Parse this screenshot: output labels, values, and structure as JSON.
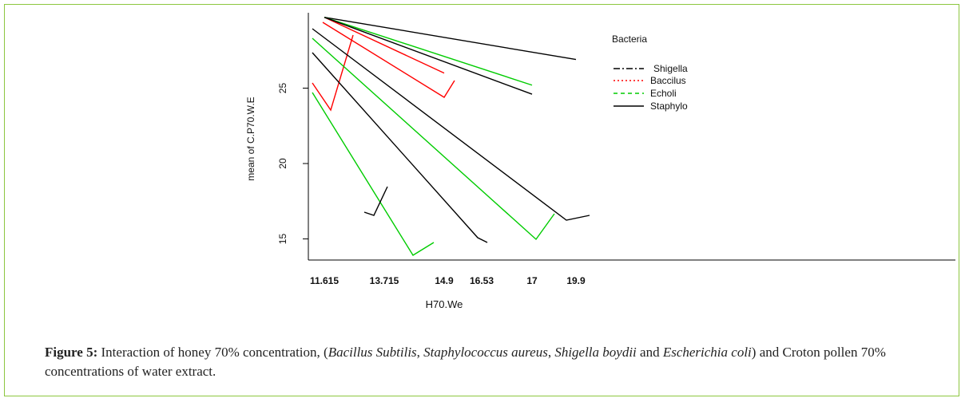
{
  "chart_data": {
    "type": "line",
    "xlabel": "H70.We",
    "ylabel": "mean of C.P70.W.E",
    "categories": [
      "11.615",
      "13.715",
      "14.9",
      "16.53",
      "17",
      "19.9"
    ],
    "yticks": [
      15,
      20,
      25
    ],
    "ylim": [
      13.6,
      30
    ],
    "legend": {
      "title": "Bacteria",
      "placement": "top-right"
    },
    "series": [
      {
        "name": "Shigella",
        "color": "#000000",
        "dash": "8,3,2,3",
        "x": [
          11.615,
          19.9
        ],
        "values": [
          29.7,
          26.9
        ]
      },
      {
        "name": "Baccilus",
        "color": "#ff0000",
        "dash": "2,3",
        "x": [
          11.615,
          14.9
        ],
        "values": [
          29.7,
          26.0
        ]
      },
      {
        "name": "Echoli",
        "color": "#00cc00",
        "dash": "5,4",
        "x": [
          11.615,
          17
        ],
        "values": [
          29.7,
          25.2
        ]
      },
      {
        "name": "Staphylo",
        "color": "#000000",
        "dash": "",
        "x": [
          11.615,
          17
        ],
        "values": [
          29.7,
          24.6
        ]
      }
    ],
    "segments": [
      {
        "color": "#ff0000",
        "points": [
          [
            11.615,
            25.9
          ],
          [
            11.615,
            24.0
          ],
          [
            14.9,
            29.0
          ]
        ]
      },
      {
        "color": "#ff0000",
        "points": [
          [
            11.615,
            29.7
          ],
          [
            14.9,
            24.9
          ],
          [
            14.9,
            26.1
          ]
        ]
      },
      {
        "color": "#00cc00",
        "points": [
          [
            11.615,
            25.2
          ],
          [
            13.715,
            14.3
          ],
          [
            14.9,
            15.2
          ]
        ]
      },
      {
        "color": "#00cc00",
        "points": [
          [
            11.615,
            28.7
          ],
          [
            17,
            15.4
          ],
          [
            17,
            17.1
          ]
        ]
      },
      {
        "color": "#000000",
        "points": [
          [
            11.615,
            27.9
          ],
          [
            16.53,
            15.5
          ],
          [
            16.53,
            15.1
          ]
        ]
      },
      {
        "color": "#000000",
        "points": [
          [
            11.615,
            29.3
          ],
          [
            19.9,
            16.6
          ],
          [
            19.9,
            17.0
          ]
        ]
      },
      {
        "color": "#000000",
        "points": [
          [
            13.715,
            17.2
          ],
          [
            13.715,
            17.0
          ],
          [
            13.715,
            18.9
          ]
        ]
      }
    ]
  },
  "caption": {
    "figure_label": "Figure 5:",
    "text_1": " Interaction of honey 70% concentration, (",
    "species_1": "Bacillus Subtilis",
    "sep_1": ", ",
    "species_2": "Staphylococcus aureus",
    "sep_2": ", ",
    "species_3": "Shigella boydii",
    "sep_3": " and ",
    "species_4": "Escherichia coli",
    "text_2": ") and Croton pollen 70% concentrations of water extract."
  }
}
